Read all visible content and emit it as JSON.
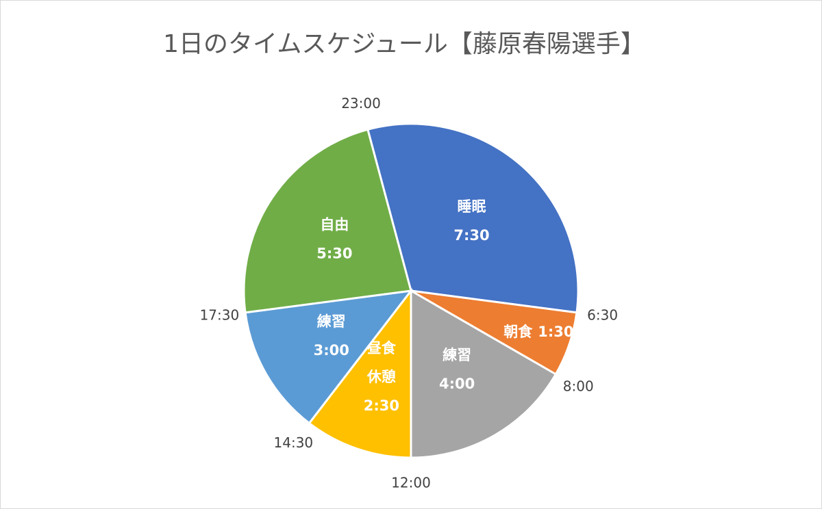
{
  "chart_data": {
    "type": "pie",
    "title": "1日のタイムスケジュール【藤原春陽選手】",
    "categories": [
      "睡眠",
      "朝食",
      "練習",
      "昼食\n休憩",
      "練習",
      "自由"
    ],
    "values": [
      7.5,
      1.5,
      4,
      2.5,
      3,
      5.5
    ],
    "value_labels": [
      "7:30",
      "1:30",
      "4:00",
      "2:30",
      "3:00",
      "5:30"
    ],
    "boundary_labels": [
      "23:00",
      "6:30",
      "8:00",
      "12:00",
      "14:30",
      "17:30"
    ],
    "colors": [
      "#4472c4",
      "#ed7d31",
      "#a5a5a5",
      "#ffc000",
      "#5b9bd5",
      "#70ad47"
    ],
    "start_angle": -15
  }
}
